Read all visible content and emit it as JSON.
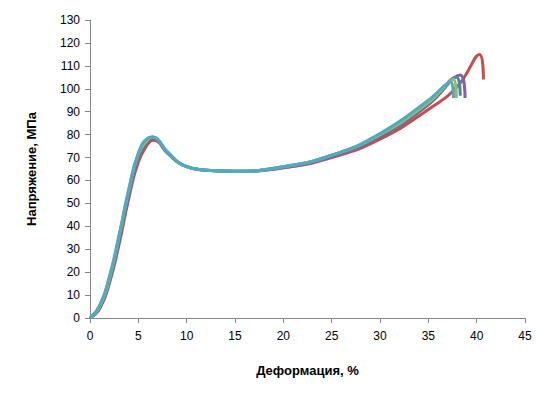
{
  "chart_data": {
    "type": "line",
    "x_label": "Деформация, %",
    "y_label": "Напряжение, МПа",
    "xlim": [
      0,
      45
    ],
    "xticks": [
      0,
      5,
      10,
      15,
      20,
      25,
      30,
      35,
      40,
      45
    ],
    "ylim": [
      0,
      130
    ],
    "yticks": [
      0,
      10,
      20,
      30,
      40,
      50,
      60,
      70,
      80,
      90,
      100,
      110,
      120,
      130
    ],
    "grid": false,
    "series": [
      {
        "color": "#c0504d",
        "x": [
          0,
          1,
          2,
          3,
          4,
          5,
          6,
          6.5,
          7,
          8,
          10,
          12,
          15,
          20,
          25,
          30,
          35,
          38,
          40.3,
          40.7
        ],
        "values": [
          0,
          4,
          15,
          32,
          52,
          68,
          76,
          77.5,
          77,
          72,
          66,
          64.5,
          64,
          65.5,
          70,
          78,
          91,
          101,
          115,
          104
        ]
      },
      {
        "color": "#8064a2",
        "x": [
          0,
          1,
          2,
          3,
          4,
          5,
          6,
          6.5,
          7,
          8,
          10,
          12,
          15,
          20,
          25,
          30,
          35,
          38.3,
          38.8
        ],
        "values": [
          0,
          4.5,
          16,
          34,
          54,
          70,
          77.5,
          78.5,
          77.5,
          72,
          66,
          64.5,
          64,
          65.5,
          70.5,
          79,
          93,
          106,
          96
        ]
      },
      {
        "color": "#4f81bd",
        "x": [
          0,
          1,
          2,
          3,
          4,
          5,
          6,
          6.5,
          7,
          8,
          10,
          12,
          15,
          20,
          25,
          30,
          35,
          37.9,
          38.3
        ],
        "values": [
          0,
          5,
          17,
          35,
          55,
          71,
          78,
          79,
          78,
          72.5,
          66,
          64.5,
          64,
          66,
          71,
          80,
          94,
          105,
          97
        ]
      },
      {
        "color": "#9bbb59",
        "x": [
          0,
          1,
          2,
          3,
          4,
          5,
          6,
          6.5,
          7,
          8,
          10,
          12,
          15,
          20,
          25,
          30,
          35,
          37.6,
          37.9
        ],
        "values": [
          0,
          5,
          17,
          35.5,
          55.5,
          71.5,
          78,
          79,
          78,
          72.5,
          66,
          64.5,
          64,
          66,
          71,
          80,
          94,
          104,
          96
        ]
      },
      {
        "color": "#4bacc6",
        "x": [
          0,
          1,
          2,
          3,
          4,
          5,
          6,
          6.5,
          7,
          8,
          10,
          12,
          15,
          20,
          25,
          30,
          35,
          37.3,
          37.6
        ],
        "values": [
          0,
          5.5,
          18,
          36,
          56,
          72,
          78.5,
          79,
          78,
          72.5,
          66,
          64.5,
          64,
          66,
          71,
          80.5,
          95,
          103,
          96
        ]
      }
    ]
  }
}
